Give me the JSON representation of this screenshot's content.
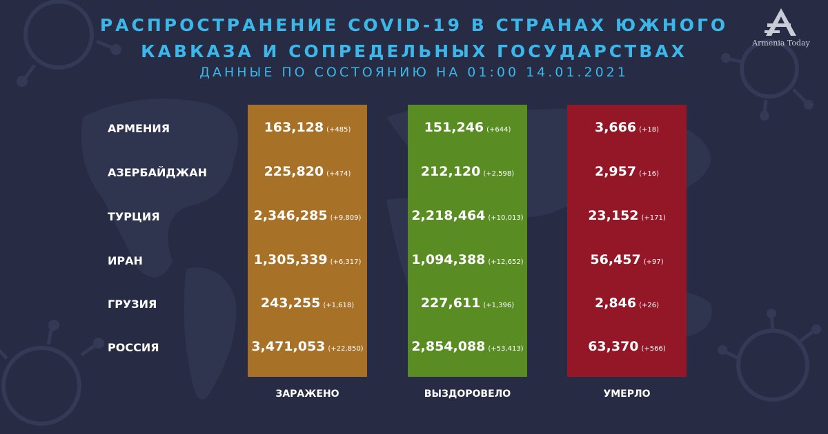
{
  "title_line1": "РАСПРОСТРАНЕНИЕ COVID-19 В СТРАНАХ ЮЖНОГО",
  "title_line2": "КАВКАЗА И СОПРЕДЕЛЬНЫХ ГОСУДАРСТВАХ",
  "subtitle": "ДАННЫЕ ПО СОСТОЯНИЮ НА 01:00  14.01.2021",
  "logo_text": "Armenia Today",
  "colors": {
    "background": "#272b44",
    "title": "#3cb7ea",
    "infected": "#b07626",
    "recovered": "#5c9222",
    "died": "#9a1626"
  },
  "columns": [
    "ЗАРАЖЕНО",
    "ВЫЗДОРОВЕЛО",
    "УМЕРЛО"
  ],
  "rows": [
    {
      "country": "АРМЕНИЯ",
      "infected": "163,128",
      "infected_delta": "(+485)",
      "recovered": "151,246",
      "recovered_delta": "(+644)",
      "died": "3,666",
      "died_delta": "(+18)"
    },
    {
      "country": "АЗЕРБАЙДЖАН",
      "infected": "225,820",
      "infected_delta": "(+474)",
      "recovered": "212,120",
      "recovered_delta": "(+2,598)",
      "died": "2,957",
      "died_delta": "(+16)"
    },
    {
      "country": "ТУРЦИЯ",
      "infected": "2,346,285",
      "infected_delta": "(+9,809)",
      "recovered": "2,218,464",
      "recovered_delta": "(+10,013)",
      "died": "23,152",
      "died_delta": "(+171)"
    },
    {
      "country": "ИРАН",
      "infected": "1,305,339",
      "infected_delta": "(+6,317)",
      "recovered": "1,094,388",
      "recovered_delta": "(+12,652)",
      "died": "56,457",
      "died_delta": "(+97)"
    },
    {
      "country": "ГРУЗИЯ",
      "infected": "243,255",
      "infected_delta": "(+1,618)",
      "recovered": "227,611",
      "recovered_delta": "(+1,396)",
      "died": "2,846",
      "died_delta": "(+26)"
    },
    {
      "country": "РОССИЯ",
      "infected": "3,471,053",
      "infected_delta": "(+22,850)",
      "recovered": "2,854,088",
      "recovered_delta": "(+53,413)",
      "died": "63,370",
      "died_delta": "(+566)"
    }
  ]
}
